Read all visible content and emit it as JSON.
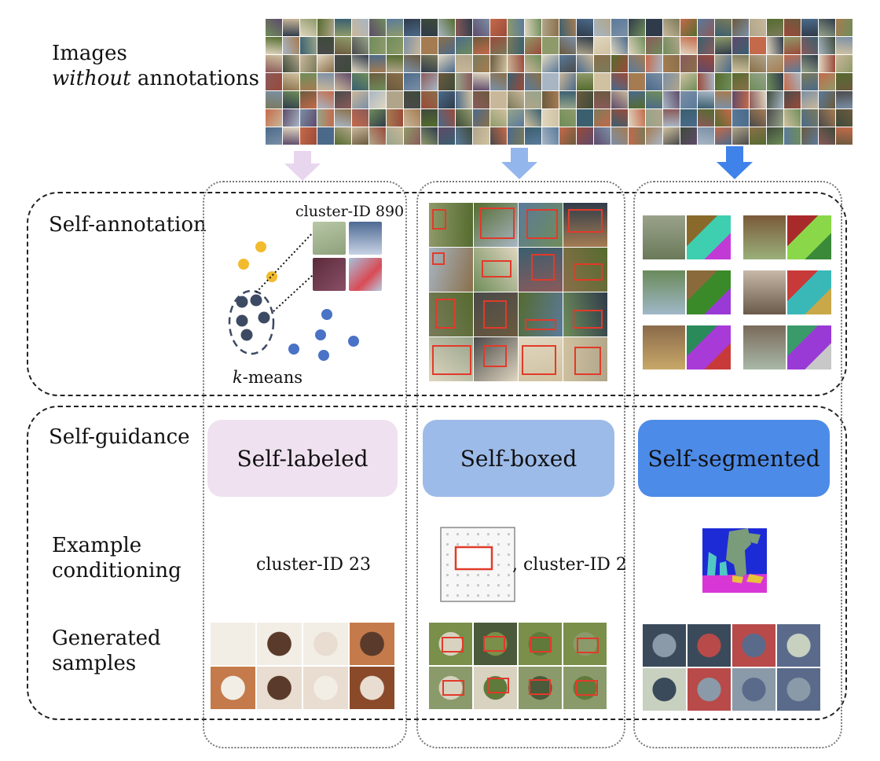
{
  "row_labels": {
    "images": {
      "line1": "Images",
      "line2_italic": "without",
      "line2_rest": " annotations"
    },
    "self_annotation": "Self-annotation",
    "self_guidance": "Self-guidance",
    "example_conditioning": {
      "line1": "Example",
      "line2": "conditioning"
    },
    "generated_samples": {
      "line1": "Generated",
      "line2": "samples"
    }
  },
  "columns": {
    "labeled": {
      "pill_label": "Self-labeled",
      "pill_color": "#efe1f0",
      "arrow_color": "#e8d6ee",
      "cluster_caption": "cluster-ID 890",
      "kmeans_italic": "k",
      "kmeans_rest": "-means",
      "conditioning_text": "cluster-ID 23"
    },
    "boxed": {
      "pill_label": "Self-boxed",
      "pill_color": "#9dbbe9",
      "arrow_color": "#93b6ec",
      "conditioning_text": ", cluster-ID 2"
    },
    "segmented": {
      "pill_label": "Self-segmented",
      "pill_color": "#4d8be8",
      "arrow_color": "#3f82ea"
    }
  },
  "colors": {
    "dot_yellow": "#f2bb2e",
    "dot_dark": "#3d4a63",
    "dot_blue": "#4a72c6",
    "box_red": "#e23a2a",
    "caption_blue": "#4e6a86"
  }
}
